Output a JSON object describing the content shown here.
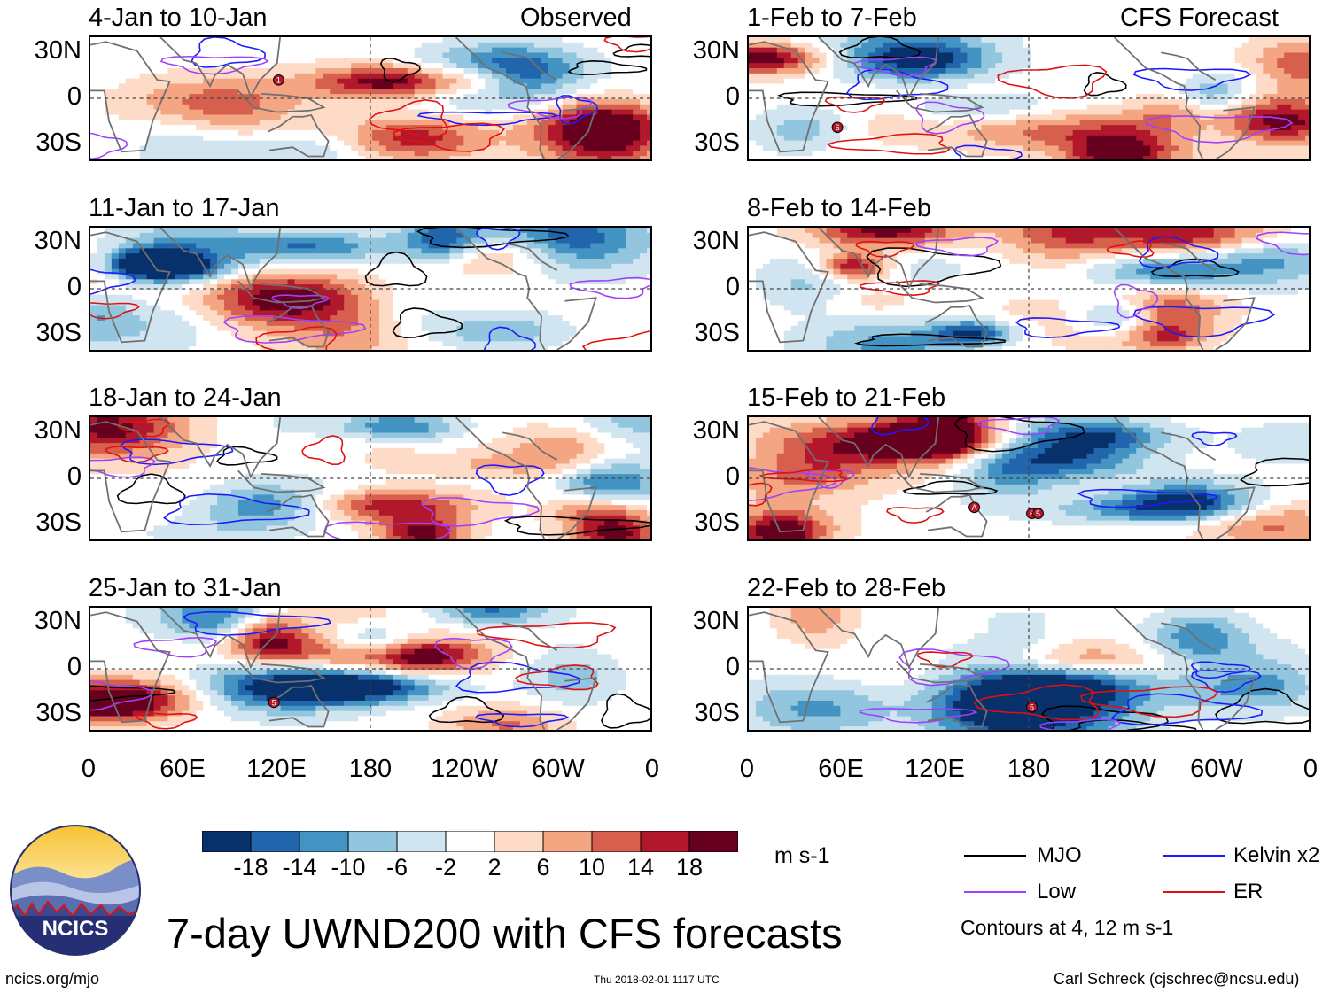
{
  "header": {
    "observed_label": "Observed",
    "forecast_label": "CFS Forecast"
  },
  "panels": [
    {
      "title": "4-Jan to 10-Jan",
      "seed": 1,
      "storms": [
        {
          "label": "1",
          "lon": 121,
          "lat": 12
        }
      ]
    },
    {
      "title": "11-Jan to 17-Jan",
      "seed": 2,
      "storms": []
    },
    {
      "title": "18-Jan to 24-Jan",
      "seed": 3,
      "storms": []
    },
    {
      "title": "25-Jan to 31-Jan",
      "seed": 4,
      "storms": [
        {
          "label": "5",
          "lon": 118,
          "lat": -22
        }
      ]
    },
    {
      "title": "1-Feb to 7-Feb",
      "seed": 5,
      "storms": [
        {
          "label": "6",
          "lon": 57,
          "lat": -19
        }
      ]
    },
    {
      "title": "8-Feb to 14-Feb",
      "seed": 6,
      "storms": []
    },
    {
      "title": "15-Feb to 21-Feb",
      "seed": 7,
      "storms": [
        {
          "label": "A",
          "lon": 145,
          "lat": -19
        },
        {
          "label": "6",
          "lon": 182,
          "lat": -23
        },
        {
          "label": "5",
          "lon": 186,
          "lat": -23
        }
      ]
    },
    {
      "title": "22-Feb to 28-Feb",
      "seed": 8,
      "storms": [
        {
          "label": "5",
          "lon": 182,
          "lat": -25
        }
      ]
    }
  ],
  "axes": {
    "y_ticks": [
      "30N",
      "0",
      "30S"
    ],
    "y_values": [
      30,
      0,
      -30
    ],
    "lat_range": [
      -40,
      40
    ],
    "x_ticks": [
      "0",
      "60E",
      "120E",
      "180",
      "120W",
      "60W",
      "0"
    ],
    "x_values": [
      0,
      60,
      120,
      180,
      240,
      300,
      360
    ],
    "lon_range": [
      0,
      360
    ]
  },
  "colorbar": {
    "unit": "m s-1",
    "tick_labels": [
      "-18",
      "-14",
      "-10",
      "-6",
      "-2",
      "2",
      "6",
      "10",
      "14",
      "18"
    ],
    "colors": [
      "#08306b",
      "#2166ac",
      "#4393c3",
      "#92c5de",
      "#d1e5f0",
      "#ffffff",
      "#fddbc7",
      "#f4a582",
      "#d6604d",
      "#b2182b",
      "#67001f"
    ]
  },
  "legend": {
    "mjo": {
      "label": "MJO",
      "color": "#000000"
    },
    "kelvin": {
      "label": "Kelvin x2",
      "color": "#1a1aff"
    },
    "low": {
      "label": "Low",
      "color": "#a040ff"
    },
    "er": {
      "label": "ER",
      "color": "#e01010"
    },
    "contours_note": "Contours at 4, 12 m s-1"
  },
  "logo": {
    "text": "NCICS"
  },
  "footer": {
    "main_title": "7-day UWND200 with CFS forecasts",
    "url": "ncics.org/mjo",
    "timestamp": "Thu 2018-02-01 1117 UTC",
    "credit": "Carl Schreck (cjschrec@ncsu.edu)"
  }
}
